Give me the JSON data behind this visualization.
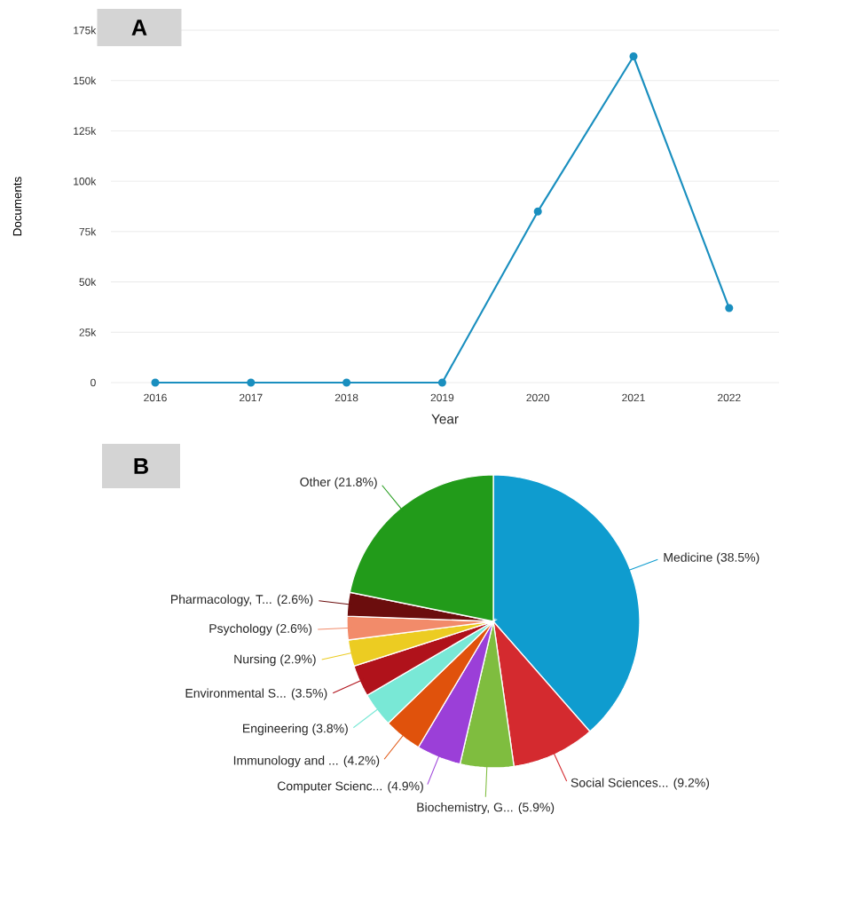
{
  "chart_data": [
    {
      "type": "line",
      "annotations": [
        "A"
      ],
      "xlabel": "Year",
      "ylabel": "Documents",
      "categories": [
        "2016",
        "2017",
        "2018",
        "2019",
        "2020",
        "2021",
        "2022"
      ],
      "series": [
        {
          "color": "#1a8fbf",
          "values": [
            0,
            0,
            0,
            0,
            85000,
            162000,
            37000
          ]
        }
      ],
      "ylim": [
        0,
        175000
      ],
      "yticks": [
        0,
        {
          "value": 25000,
          "label": "25k"
        },
        {
          "value": 50000,
          "label": "50k"
        },
        {
          "value": 75000,
          "label": "75k"
        },
        {
          "value": 100000,
          "label": "100k"
        },
        {
          "value": 125000,
          "label": "125k"
        },
        {
          "value": 150000,
          "label": "150k"
        },
        {
          "value": 175000,
          "label": "175k"
        }
      ],
      "grid": "y",
      "marker": "circle"
    },
    {
      "type": "pie",
      "annotations": [
        "B"
      ],
      "categories": [
        "Medicine",
        "Social Sciences...",
        "Biochemistry, G...",
        "Computer Scienc...",
        "Immunology and ...",
        "Engineering",
        "Environmental S...",
        "Nursing",
        "Psychology",
        "Pharmacology, T...",
        "Other"
      ],
      "values": [
        38.5,
        9.2,
        5.9,
        4.9,
        4.2,
        3.8,
        3.5,
        2.9,
        2.6,
        2.6,
        21.8
      ],
      "value_labels": [
        "(38.5%)",
        "(9.2%)",
        "(5.9%)",
        "(4.9%)",
        "(4.2%)",
        "(3.8%)",
        "(3.5%)",
        "(2.9%)",
        "(2.6%)",
        "(2.6%)",
        "(21.8%)"
      ],
      "colors": [
        "#0f9ccf",
        "#d42a2f",
        "#7fbd3f",
        "#9b3fd8",
        "#e0520c",
        "#79e8d6",
        "#b0121b",
        "#eccc22",
        "#f28b6a",
        "#6b0d0d",
        "#229b1a"
      ]
    }
  ]
}
